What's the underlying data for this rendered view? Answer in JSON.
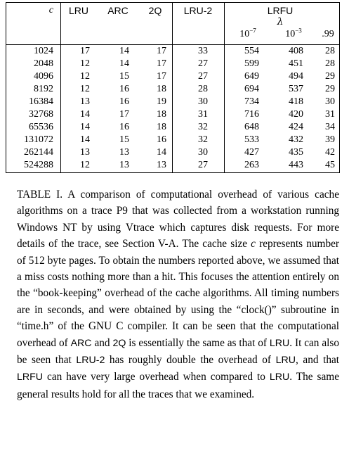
{
  "table": {
    "headers": {
      "c": "c",
      "lru": "LRU",
      "arc": "ARC",
      "twoq": "2Q",
      "lru2": "LRU-2",
      "lrfu": "LRFU",
      "lambda": "λ",
      "lambda_1_base": "10",
      "lambda_1_exp": "−7",
      "lambda_2_base": "10",
      "lambda_2_exp": "−3",
      "lambda_3": ".99"
    },
    "rows": [
      {
        "c": "1024",
        "lru": "17",
        "arc": "14",
        "twoq": "17",
        "lru2": "33",
        "l1": "554",
        "l2": "408",
        "l3": "28"
      },
      {
        "c": "2048",
        "lru": "12",
        "arc": "14",
        "twoq": "17",
        "lru2": "27",
        "l1": "599",
        "l2": "451",
        "l3": "28"
      },
      {
        "c": "4096",
        "lru": "12",
        "arc": "15",
        "twoq": "17",
        "lru2": "27",
        "l1": "649",
        "l2": "494",
        "l3": "29"
      },
      {
        "c": "8192",
        "lru": "12",
        "arc": "16",
        "twoq": "18",
        "lru2": "28",
        "l1": "694",
        "l2": "537",
        "l3": "29"
      },
      {
        "c": "16384",
        "lru": "13",
        "arc": "16",
        "twoq": "19",
        "lru2": "30",
        "l1": "734",
        "l2": "418",
        "l3": "30"
      },
      {
        "c": "32768",
        "lru": "14",
        "arc": "17",
        "twoq": "18",
        "lru2": "31",
        "l1": "716",
        "l2": "420",
        "l3": "31"
      },
      {
        "c": "65536",
        "lru": "14",
        "arc": "16",
        "twoq": "18",
        "lru2": "32",
        "l1": "648",
        "l2": "424",
        "l3": "34"
      },
      {
        "c": "131072",
        "lru": "14",
        "arc": "15",
        "twoq": "16",
        "lru2": "32",
        "l1": "533",
        "l2": "432",
        "l3": "39"
      },
      {
        "c": "262144",
        "lru": "13",
        "arc": "13",
        "twoq": "14",
        "lru2": "30",
        "l1": "427",
        "l2": "435",
        "l3": "42"
      },
      {
        "c": "524288",
        "lru": "12",
        "arc": "13",
        "twoq": "13",
        "lru2": "27",
        "l1": "263",
        "l2": "443",
        "l3": "45"
      }
    ]
  },
  "caption": {
    "label": "TABLE I.",
    "t1": " A comparison of computational overhead of various cache algorithms on a trace P9 that was collected from a workstation running Windows NT by using Vtrace which captures disk requests. For more details of the trace, see Section V-A. The cache size ",
    "c_symbol": "c",
    "t2": " represents number of ",
    "n512": "512",
    "t3": " byte pages. To obtain the numbers reported above, we assumed that a miss costs nothing more than a hit. This focuses the attention entirely on the “book-keeping” overhead of the cache algorithms. All timing numbers are in seconds, and were obtained by using the “clock()” subroutine in “time.h” of the GNU C compiler. It can be seen that the computational overhead of ",
    "arc": "ARC",
    "t4": " and ",
    "twoq": "2Q",
    "t5": " is essentially the same as that of ",
    "lru_a": "LRU",
    "t6": ". It can also be seen that ",
    "lru2": "LRU-2",
    "t7": " has roughly double the overhead of ",
    "lru_b": "LRU",
    "t8": ", and that ",
    "lrfu": "LRFU",
    "t9": " can have very large overhead when compared to ",
    "lru_c": "LRU",
    "t10": ". The same general results hold for all the traces that we examined."
  }
}
